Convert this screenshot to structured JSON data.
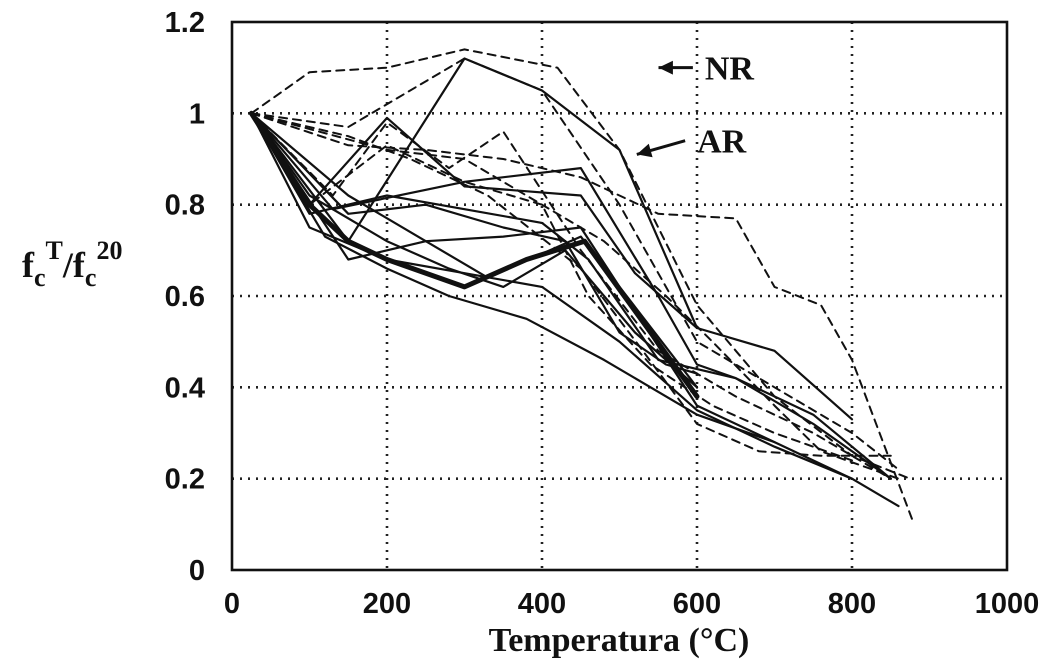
{
  "chart_data": {
    "type": "line",
    "xlabel": "Temperatura (°C)",
    "ylabel": {
      "base1": "f",
      "sub1": "c",
      "sup1": "T",
      "slash": "/",
      "base2": "f",
      "sub2": "c",
      "sup2": "20"
    },
    "xlim": [
      0,
      1000
    ],
    "ylim": [
      0,
      1.2
    ],
    "xticks": [
      "0",
      "200",
      "400",
      "600",
      "800",
      "1000"
    ],
    "yticks": [
      "0",
      "0.2",
      "0.4",
      "0.6",
      "0.8",
      "1",
      "1.2"
    ],
    "grid": true,
    "annotations": [
      {
        "text": "NR",
        "x": 540,
        "y": 1.1,
        "label_x": 605,
        "label_y": 1.1
      },
      {
        "text": "AR",
        "x": 512,
        "y": 0.91,
        "label_x": 595,
        "label_y": 0.94
      }
    ],
    "series": [
      {
        "style": "dashed",
        "points": [
          [
            25,
            1
          ],
          [
            100,
            1.09
          ],
          [
            200,
            1.1
          ],
          [
            300,
            1.14
          ],
          [
            420,
            1.1
          ],
          [
            500,
            0.92
          ],
          [
            600,
            0.58
          ],
          [
            650,
            0.48
          ],
          [
            700,
            0.38
          ],
          [
            800,
            0.25
          ],
          [
            875,
            0.2
          ]
        ]
      },
      {
        "style": "dashed",
        "points": [
          [
            25,
            1
          ],
          [
            150,
            0.97
          ],
          [
            300,
            1.12
          ],
          [
            400,
            1.05
          ],
          [
            500,
            0.8
          ],
          [
            600,
            0.5
          ],
          [
            700,
            0.4
          ],
          [
            800,
            0.3
          ],
          [
            860,
            0.22
          ]
        ]
      },
      {
        "style": "dashed",
        "points": [
          [
            25,
            1
          ],
          [
            150,
            0.93
          ],
          [
            250,
            0.92
          ],
          [
            350,
            0.9
          ],
          [
            450,
            0.86
          ],
          [
            550,
            0.78
          ],
          [
            650,
            0.77
          ],
          [
            700,
            0.62
          ],
          [
            760,
            0.58
          ],
          [
            800,
            0.46
          ],
          [
            840,
            0.28
          ],
          [
            880,
            0.1
          ]
        ]
      },
      {
        "style": "dashed",
        "points": [
          [
            25,
            1
          ],
          [
            200,
            0.92
          ],
          [
            300,
            0.9
          ],
          [
            400,
            0.8
          ],
          [
            480,
            0.72
          ],
          [
            560,
            0.6
          ],
          [
            620,
            0.5
          ],
          [
            700,
            0.36
          ],
          [
            760,
            0.26
          ],
          [
            860,
            0.2
          ]
        ]
      },
      {
        "style": "dashed",
        "points": [
          [
            25,
            1
          ],
          [
            130,
            0.82
          ],
          [
            200,
            0.98
          ],
          [
            280,
            0.88
          ],
          [
            350,
            0.96
          ],
          [
            450,
            0.7
          ],
          [
            550,
            0.48
          ],
          [
            650,
            0.38
          ],
          [
            750,
            0.3
          ],
          [
            850,
            0.2
          ]
        ]
      },
      {
        "style": "dashed",
        "points": [
          [
            25,
            1
          ],
          [
            150,
            0.95
          ],
          [
            230,
            0.9
          ],
          [
            330,
            0.82
          ],
          [
            450,
            0.66
          ],
          [
            530,
            0.48
          ],
          [
            600,
            0.32
          ],
          [
            680,
            0.26
          ],
          [
            760,
            0.25
          ],
          [
            850,
            0.25
          ]
        ]
      },
      {
        "style": "dashed",
        "points": [
          [
            25,
            1
          ],
          [
            100,
            0.8
          ],
          [
            200,
            0.93
          ],
          [
            300,
            0.85
          ],
          [
            400,
            0.8
          ],
          [
            460,
            0.6
          ],
          [
            540,
            0.45
          ],
          [
            620,
            0.36
          ],
          [
            700,
            0.3
          ],
          [
            800,
            0.24
          ]
        ]
      },
      {
        "style": "solid",
        "width": 2.2,
        "points": [
          [
            25,
            1
          ],
          [
            100,
            0.8
          ],
          [
            200,
            0.99
          ],
          [
            300,
            0.84
          ],
          [
            450,
            0.82
          ],
          [
            520,
            0.65
          ],
          [
            600,
            0.53
          ],
          [
            700,
            0.48
          ],
          [
            800,
            0.33
          ]
        ]
      },
      {
        "style": "solid",
        "width": 2.2,
        "points": [
          [
            25,
            1
          ],
          [
            150,
            0.72
          ],
          [
            300,
            1.12
          ],
          [
            400,
            1.05
          ],
          [
            500,
            0.92
          ],
          [
            600,
            0.53
          ]
        ]
      },
      {
        "style": "solid",
        "width": 2.2,
        "points": [
          [
            25,
            1
          ],
          [
            130,
            0.79
          ],
          [
            300,
            0.85
          ],
          [
            450,
            0.88
          ],
          [
            550,
            0.6
          ],
          [
            600,
            0.45
          ],
          [
            650,
            0.42
          ],
          [
            750,
            0.34
          ],
          [
            850,
            0.2
          ]
        ]
      },
      {
        "style": "solid",
        "width": 2.2,
        "points": [
          [
            25,
            1
          ],
          [
            100,
            0.78
          ],
          [
            200,
            0.82
          ],
          [
            300,
            0.79
          ],
          [
            400,
            0.76
          ],
          [
            460,
            0.68
          ],
          [
            550,
            0.46
          ],
          [
            650,
            0.42
          ],
          [
            750,
            0.32
          ],
          [
            850,
            0.2
          ]
        ]
      },
      {
        "style": "solid",
        "width": 2.2,
        "points": [
          [
            25,
            1
          ],
          [
            150,
            0.82
          ],
          [
            250,
            0.72
          ],
          [
            350,
            0.73
          ],
          [
            450,
            0.75
          ],
          [
            600,
            0.36
          ],
          [
            700,
            0.28
          ],
          [
            800,
            0.2
          ],
          [
            860,
            0.14
          ]
        ]
      },
      {
        "style": "solid",
        "width": 2.2,
        "points": [
          [
            25,
            1
          ],
          [
            100,
            0.75
          ],
          [
            200,
            0.68
          ],
          [
            300,
            0.65
          ],
          [
            400,
            0.62
          ],
          [
            500,
            0.5
          ],
          [
            600,
            0.35
          ],
          [
            700,
            0.27
          ],
          [
            800,
            0.2
          ]
        ]
      },
      {
        "style": "solid",
        "width": 2.2,
        "points": [
          [
            25,
            1
          ],
          [
            120,
            0.73
          ],
          [
            200,
            0.66
          ],
          [
            280,
            0.6
          ],
          [
            380,
            0.55
          ],
          [
            480,
            0.46
          ],
          [
            600,
            0.34
          ],
          [
            700,
            0.28
          ]
        ]
      },
      {
        "style": "solid",
        "width": 2.2,
        "points": [
          [
            25,
            1
          ],
          [
            150,
            0.68
          ],
          [
            250,
            0.72
          ],
          [
            330,
            0.64
          ],
          [
            450,
            0.73
          ],
          [
            600,
            0.4
          ]
        ]
      },
      {
        "style": "solid",
        "width": 2.2,
        "points": [
          [
            25,
            1
          ],
          [
            100,
            0.82
          ],
          [
            200,
            0.72
          ],
          [
            280,
            0.66
          ],
          [
            350,
            0.62
          ],
          [
            430,
            0.7
          ],
          [
            520,
            0.52
          ],
          [
            600,
            0.4
          ]
        ]
      },
      {
        "style": "solid",
        "width": 2.2,
        "points": [
          [
            25,
            1
          ],
          [
            150,
            0.78
          ],
          [
            250,
            0.8
          ],
          [
            350,
            0.75
          ],
          [
            430,
            0.72
          ],
          [
            500,
            0.52
          ],
          [
            560,
            0.45
          ],
          [
            600,
            0.43
          ]
        ]
      },
      {
        "style": "solid",
        "width": 5,
        "points": [
          [
            25,
            1
          ],
          [
            100,
            0.8
          ],
          [
            150,
            0.72
          ],
          [
            200,
            0.68
          ],
          [
            300,
            0.62
          ],
          [
            380,
            0.68
          ],
          [
            455,
            0.72
          ],
          [
            600,
            0.38
          ]
        ]
      }
    ]
  }
}
